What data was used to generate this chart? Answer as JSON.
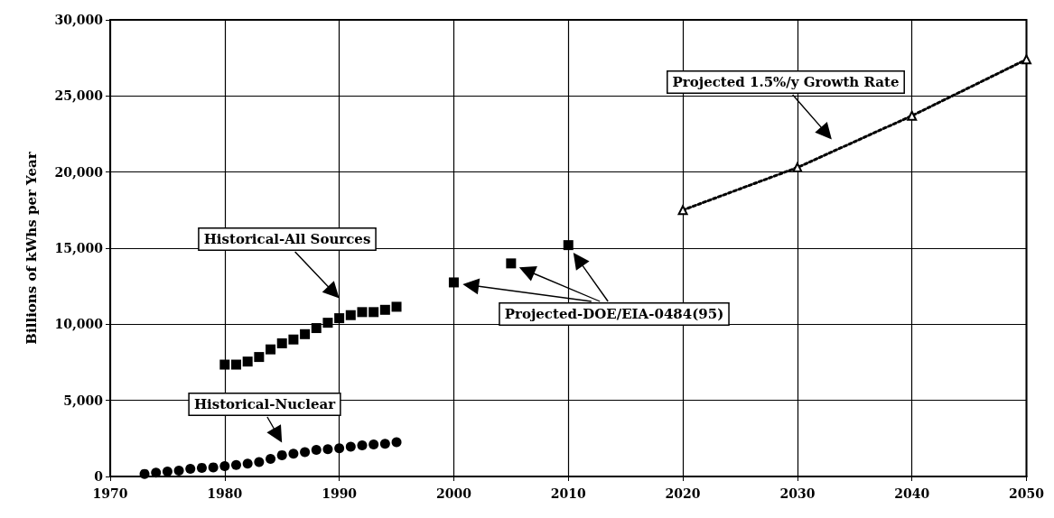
{
  "chart_data": {
    "type": "scatter",
    "ylabel": "Billions of kWhs per Year",
    "xlim": [
      1970,
      2050
    ],
    "xticks": [
      1970,
      1980,
      1990,
      2000,
      2010,
      2020,
      2030,
      2040,
      2050
    ],
    "ylim": [
      0,
      30000
    ],
    "yticks": [
      0,
      {
        "value": 5000,
        "label": "5,000"
      },
      {
        "value": 10000,
        "label": "10,000"
      },
      {
        "value": 15000,
        "label": "15,000"
      },
      {
        "value": 20000,
        "label": "20,000"
      },
      {
        "value": 25000,
        "label": "25,000"
      },
      {
        "value": 30000,
        "label": "30,000"
      }
    ],
    "grid": true,
    "series": [
      {
        "name": "Historical-Nuclear",
        "marker": "circle",
        "color": "#000000",
        "x": [
          1973,
          1974,
          1975,
          1976,
          1977,
          1978,
          1979,
          1980,
          1981,
          1982,
          1983,
          1984,
          1985,
          1986,
          1987,
          1988,
          1989,
          1990,
          1991,
          1992,
          1993,
          1994,
          1995
        ],
        "values": [
          170,
          250,
          330,
          390,
          500,
          570,
          600,
          680,
          750,
          850,
          950,
          1150,
          1400,
          1500,
          1600,
          1750,
          1800,
          1850,
          1950,
          2050,
          2100,
          2150,
          2250
        ]
      },
      {
        "name": "Historical-All Sources",
        "marker": "square",
        "color": "#000000",
        "x": [
          1980,
          1981,
          1982,
          1983,
          1984,
          1985,
          1986,
          1987,
          1988,
          1989,
          1990,
          1991,
          1992,
          1993,
          1994,
          1995
        ],
        "values": [
          7350,
          7350,
          7550,
          7850,
          8350,
          8750,
          9000,
          9350,
          9750,
          10100,
          10400,
          10600,
          10800,
          10800,
          10950,
          11150
        ]
      },
      {
        "name": "Projected-DOE/EIA-0484(95)",
        "marker": "square",
        "color": "#000000",
        "x": [
          2000,
          2005,
          2010
        ],
        "values": [
          12750,
          14000,
          15200
        ]
      },
      {
        "name": "Projected 1.5%/y Growth Rate",
        "type": "line",
        "marker": "triangle",
        "line_style": "dotted",
        "color": "#000000",
        "x": [
          2020,
          2030,
          2040,
          2050
        ],
        "values": [
          17500,
          20300,
          23700,
          27400
        ]
      }
    ]
  }
}
